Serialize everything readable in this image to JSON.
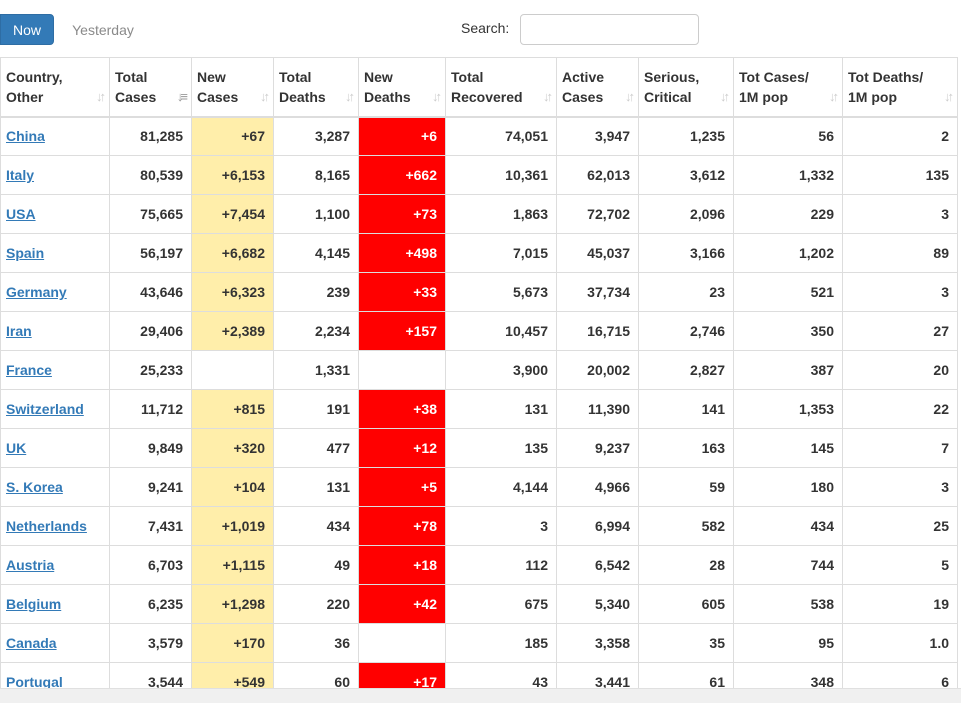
{
  "toolbar": {
    "now_label": "Now",
    "yesterday_label": "Yesterday",
    "search_label": "Search:",
    "search_value": "",
    "search_placeholder": ""
  },
  "colors": {
    "accent": "#337ab7",
    "new_cases_bg": "#ffeeaa",
    "new_deaths_bg": "#ff0000",
    "link": "#337ab7"
  },
  "table": {
    "columns": [
      {
        "line1": "Country,",
        "line2": "Other",
        "sort_icon": "sort-icon"
      },
      {
        "line1": "Total",
        "line2": "Cases",
        "sort_icon": "sort-desc-icon"
      },
      {
        "line1": "New",
        "line2": "Cases",
        "sort_icon": "sort-icon"
      },
      {
        "line1": "Total",
        "line2": "Deaths",
        "sort_icon": "sort-icon"
      },
      {
        "line1": "New",
        "line2": "Deaths",
        "sort_icon": "sort-icon"
      },
      {
        "line1": "Total",
        "line2": "Recovered",
        "sort_icon": "sort-icon"
      },
      {
        "line1": "Active",
        "line2": "Cases",
        "sort_icon": "sort-icon"
      },
      {
        "line1": "Serious,",
        "line2": "Critical",
        "sort_icon": "sort-icon"
      },
      {
        "line1": "Tot Cases/",
        "line2": "1M pop",
        "sort_icon": "sort-icon"
      },
      {
        "line1": "Tot Deaths/",
        "line2": "1M pop",
        "sort_icon": "sort-icon"
      }
    ],
    "rows": [
      {
        "country": "China",
        "total_cases": "81,285",
        "new_cases": "+67",
        "total_deaths": "3,287",
        "new_deaths": "+6",
        "total_recovered": "74,051",
        "active_cases": "3,947",
        "serious_critical": "1,235",
        "cases_per_1m": "56",
        "deaths_per_1m": "2"
      },
      {
        "country": "Italy",
        "total_cases": "80,539",
        "new_cases": "+6,153",
        "total_deaths": "8,165",
        "new_deaths": "+662",
        "total_recovered": "10,361",
        "active_cases": "62,013",
        "serious_critical": "3,612",
        "cases_per_1m": "1,332",
        "deaths_per_1m": "135"
      },
      {
        "country": "USA",
        "total_cases": "75,665",
        "new_cases": "+7,454",
        "total_deaths": "1,100",
        "new_deaths": "+73",
        "total_recovered": "1,863",
        "active_cases": "72,702",
        "serious_critical": "2,096",
        "cases_per_1m": "229",
        "deaths_per_1m": "3"
      },
      {
        "country": "Spain",
        "total_cases": "56,197",
        "new_cases": "+6,682",
        "total_deaths": "4,145",
        "new_deaths": "+498",
        "total_recovered": "7,015",
        "active_cases": "45,037",
        "serious_critical": "3,166",
        "cases_per_1m": "1,202",
        "deaths_per_1m": "89"
      },
      {
        "country": "Germany",
        "total_cases": "43,646",
        "new_cases": "+6,323",
        "total_deaths": "239",
        "new_deaths": "+33",
        "total_recovered": "5,673",
        "active_cases": "37,734",
        "serious_critical": "23",
        "cases_per_1m": "521",
        "deaths_per_1m": "3"
      },
      {
        "country": "Iran",
        "total_cases": "29,406",
        "new_cases": "+2,389",
        "total_deaths": "2,234",
        "new_deaths": "+157",
        "total_recovered": "10,457",
        "active_cases": "16,715",
        "serious_critical": "2,746",
        "cases_per_1m": "350",
        "deaths_per_1m": "27"
      },
      {
        "country": "France",
        "total_cases": "25,233",
        "new_cases": "",
        "total_deaths": "1,331",
        "new_deaths": "",
        "total_recovered": "3,900",
        "active_cases": "20,002",
        "serious_critical": "2,827",
        "cases_per_1m": "387",
        "deaths_per_1m": "20"
      },
      {
        "country": "Switzerland",
        "total_cases": "11,712",
        "new_cases": "+815",
        "total_deaths": "191",
        "new_deaths": "+38",
        "total_recovered": "131",
        "active_cases": "11,390",
        "serious_critical": "141",
        "cases_per_1m": "1,353",
        "deaths_per_1m": "22"
      },
      {
        "country": "UK",
        "total_cases": "9,849",
        "new_cases": "+320",
        "total_deaths": "477",
        "new_deaths": "+12",
        "total_recovered": "135",
        "active_cases": "9,237",
        "serious_critical": "163",
        "cases_per_1m": "145",
        "deaths_per_1m": "7"
      },
      {
        "country": "S. Korea",
        "total_cases": "9,241",
        "new_cases": "+104",
        "total_deaths": "131",
        "new_deaths": "+5",
        "total_recovered": "4,144",
        "active_cases": "4,966",
        "serious_critical": "59",
        "cases_per_1m": "180",
        "deaths_per_1m": "3"
      },
      {
        "country": "Netherlands",
        "total_cases": "7,431",
        "new_cases": "+1,019",
        "total_deaths": "434",
        "new_deaths": "+78",
        "total_recovered": "3",
        "active_cases": "6,994",
        "serious_critical": "582",
        "cases_per_1m": "434",
        "deaths_per_1m": "25"
      },
      {
        "country": "Austria",
        "total_cases": "6,703",
        "new_cases": "+1,115",
        "total_deaths": "49",
        "new_deaths": "+18",
        "total_recovered": "112",
        "active_cases": "6,542",
        "serious_critical": "28",
        "cases_per_1m": "744",
        "deaths_per_1m": "5"
      },
      {
        "country": "Belgium",
        "total_cases": "6,235",
        "new_cases": "+1,298",
        "total_deaths": "220",
        "new_deaths": "+42",
        "total_recovered": "675",
        "active_cases": "5,340",
        "serious_critical": "605",
        "cases_per_1m": "538",
        "deaths_per_1m": "19"
      },
      {
        "country": "Canada",
        "total_cases": "3,579",
        "new_cases": "+170",
        "total_deaths": "36",
        "new_deaths": "",
        "total_recovered": "185",
        "active_cases": "3,358",
        "serious_critical": "35",
        "cases_per_1m": "95",
        "deaths_per_1m": "1.0"
      },
      {
        "country": "Portugal",
        "total_cases": "3,544",
        "new_cases": "+549",
        "total_deaths": "60",
        "new_deaths": "+17",
        "total_recovered": "43",
        "active_cases": "3,441",
        "serious_critical": "61",
        "cases_per_1m": "348",
        "deaths_per_1m": "6"
      }
    ]
  }
}
